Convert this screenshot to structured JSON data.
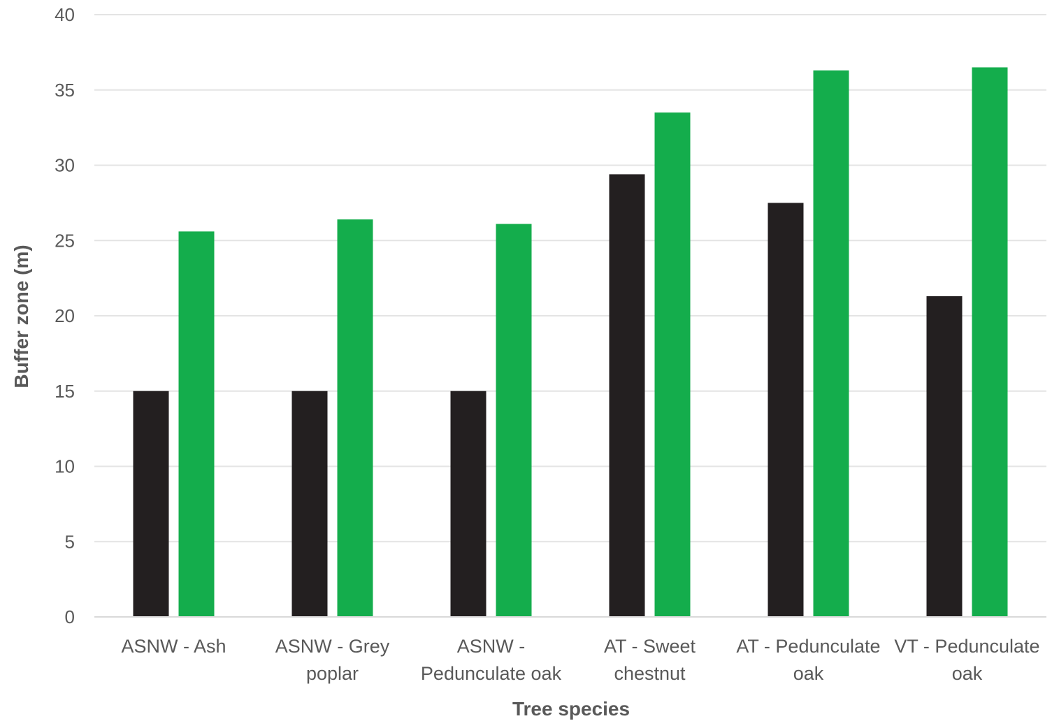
{
  "chart_data": {
    "type": "bar",
    "title": "",
    "xlabel": "Tree species",
    "ylabel": "Buffer zone (m)",
    "ylim": [
      0,
      40
    ],
    "yticks": [
      0,
      5,
      10,
      15,
      20,
      25,
      30,
      35,
      40
    ],
    "grid": true,
    "legend": "none",
    "categories": [
      [
        "ASNW - Ash"
      ],
      [
        "ASNW - Grey",
        "poplar"
      ],
      [
        "ASNW -",
        "Pedunculate oak"
      ],
      [
        "AT - Sweet",
        "chestnut"
      ],
      [
        "AT - Pedunculate",
        "oak"
      ],
      [
        "VT - Pedunculate",
        "oak"
      ]
    ],
    "series": [
      {
        "color": "#231f20",
        "values": [
          15,
          15,
          15,
          29.4,
          27.5,
          21.3
        ]
      },
      {
        "color": "#14ad4c",
        "values": [
          25.6,
          26.4,
          26.1,
          33.5,
          36.3,
          36.5
        ]
      }
    ]
  }
}
